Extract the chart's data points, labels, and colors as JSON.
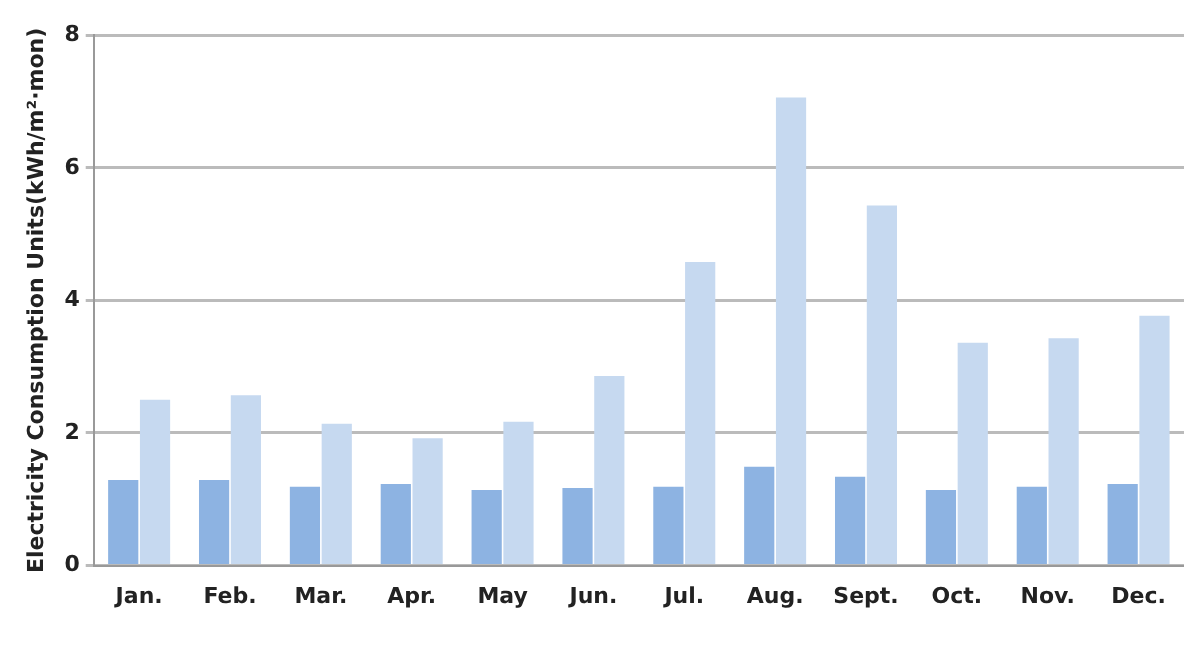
{
  "chart_data": {
    "type": "bar",
    "ylabel": "Electricity Consumption Units(kWh/m²·mon)",
    "categories": [
      "Jan.",
      "Feb.",
      "Mar.",
      "Apr.",
      "May",
      "Jun.",
      "Jul.",
      "Aug.",
      "Sept.",
      "Oct.",
      "Nov.",
      "Dec."
    ],
    "series": [
      {
        "color": "#8db3e2",
        "values": [
          1.29,
          1.29,
          1.19,
          1.23,
          1.14,
          1.17,
          1.19,
          1.49,
          1.34,
          1.14,
          1.19,
          1.23
        ]
      },
      {
        "color": "#c6d9f0",
        "values": [
          2.5,
          2.57,
          2.14,
          1.92,
          2.17,
          2.86,
          4.58,
          7.06,
          5.43,
          3.36,
          3.43,
          3.77
        ]
      }
    ],
    "ylim": [
      0,
      8
    ],
    "yticks": [
      0,
      2,
      4,
      6,
      8
    ],
    "grid": "y"
  }
}
